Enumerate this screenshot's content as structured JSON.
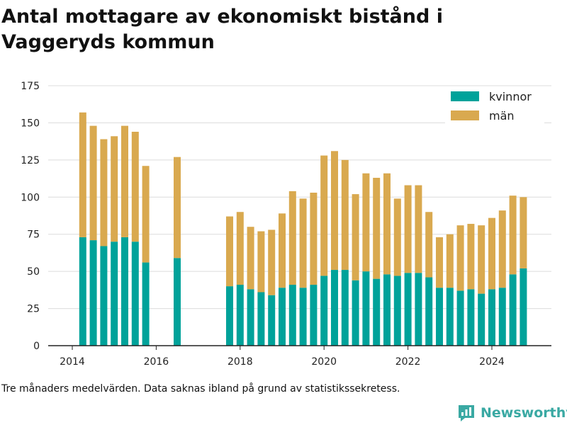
{
  "chart_data": {
    "type": "bar",
    "stacked": true,
    "title": "Antal mottagare av ekonomiskt bistånd i Vaggeryds kommun",
    "footnote": "Tre månaders medelvärden. Data saknas ibland på grund av statistikssekretess.",
    "xlabel": "",
    "ylabel": "",
    "ylim": [
      0,
      175
    ],
    "yticks": [
      "0",
      "25",
      "50",
      "75",
      "100",
      "125",
      "150",
      "175"
    ],
    "xticks": [
      "2014",
      "2016",
      "2018",
      "2020",
      "2022",
      "2024"
    ],
    "grid": true,
    "legend_position": "top-right",
    "x": [
      "2014-04",
      "2014-07",
      "2014-10",
      "2015-01",
      "2015-04",
      "2015-07",
      "2015-10",
      "2016-07",
      "2017-10",
      "2018-01",
      "2018-04",
      "2018-07",
      "2018-10",
      "2019-01",
      "2019-04",
      "2019-07",
      "2019-10",
      "2020-01",
      "2020-04",
      "2020-07",
      "2020-10",
      "2021-01",
      "2021-04",
      "2021-07",
      "2021-10",
      "2022-01",
      "2022-04",
      "2022-07",
      "2022-10",
      "2023-01",
      "2023-04",
      "2023-07",
      "2023-10",
      "2024-01",
      "2024-04",
      "2024-07",
      "2024-10"
    ],
    "series": [
      {
        "name": "kvinnor",
        "color": "#00a29a",
        "values": [
          73,
          71,
          67,
          70,
          73,
          70,
          56,
          59,
          40,
          41,
          38,
          36,
          34,
          39,
          41,
          39,
          41,
          47,
          51,
          51,
          44,
          50,
          45,
          48,
          47,
          49,
          49,
          46,
          39,
          39,
          37,
          38,
          35,
          38,
          39,
          48,
          52
        ]
      },
      {
        "name": "män",
        "color": "#d9a94f",
        "values": [
          84,
          77,
          72,
          71,
          75,
          74,
          65,
          68,
          47,
          49,
          42,
          41,
          44,
          50,
          63,
          60,
          62,
          81,
          80,
          74,
          58,
          66,
          68,
          68,
          52,
          59,
          59,
          44,
          34,
          36,
          44,
          44,
          46,
          48,
          52,
          53,
          48
        ]
      }
    ]
  },
  "brand": {
    "name": "Newsworthy"
  }
}
